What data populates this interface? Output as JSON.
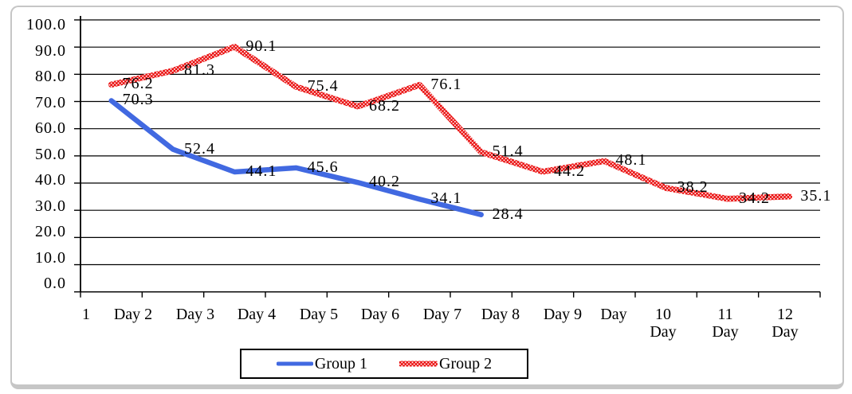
{
  "chart_data": {
    "type": "line",
    "title": "",
    "categories": [
      "Day 1",
      "Day 2",
      "Day 3",
      "Day 4",
      "Day 5",
      "Day 6",
      "Day 7",
      "Day 8",
      "Day 9",
      "Day 10",
      "Day 11",
      "Day 12"
    ],
    "x_tick_labels_display": [
      "1",
      "Day 2",
      "Day 3",
      "Day 4",
      "Day 5",
      "Day 6",
      "Day 7",
      "Day 8",
      "Day 9",
      "Day",
      "10\nDay",
      "11\nDay",
      "12\nDay"
    ],
    "y_tick_labels": [
      "100.0",
      "90.0",
      "80.0",
      "70.0",
      "60.0",
      "50.0",
      "40.0",
      "30.0",
      "20.0",
      "10.0",
      "0.0"
    ],
    "ylim": [
      0,
      100
    ],
    "y_step": 10,
    "grid": true,
    "data_labels_shown": true,
    "legend_position": "bottom",
    "series": [
      {
        "name": "Group 1",
        "color": "#4169E1",
        "line_style": "solid",
        "values": [
          70.3,
          52.4,
          44.1,
          45.6,
          40.2,
          34.1,
          28.4
        ]
      },
      {
        "name": "Group 2",
        "color": "#EA0D0D",
        "line_style": "textured-dotted",
        "values": [
          76.2,
          81.3,
          90.1,
          75.4,
          68.2,
          76.1,
          51.4,
          44.2,
          48.1,
          38.2,
          34.2,
          35.1
        ]
      }
    ]
  },
  "colors": {
    "frame_border": "#c6c6c6",
    "axis": "#000000",
    "text": "#000000",
    "legend_border": "#000000"
  }
}
